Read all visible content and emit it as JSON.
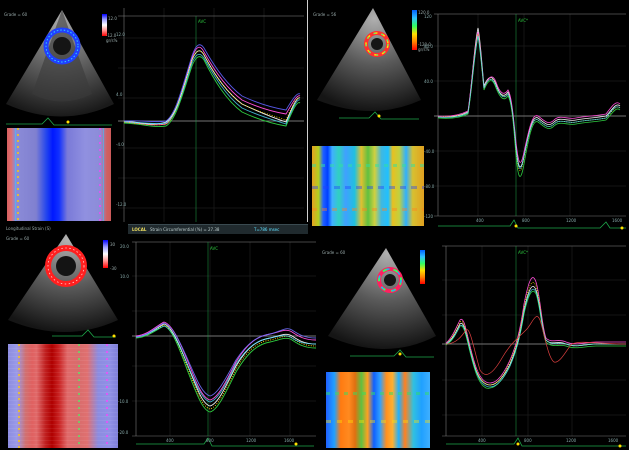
{
  "q1": {
    "label": "Grade = 60",
    "cbar_top": "12.0",
    "cbar_bottom": "-12.0",
    "cbar_unit": "gr/s%",
    "avc": "AVC",
    "y_ticks": [
      "12.0",
      "4.0",
      "-4.0",
      "-12.0"
    ],
    "accent": "#e8e8e8"
  },
  "q2": {
    "label": "Grade = 56",
    "cbar_top": "120.0",
    "cbar_bottom": "-120.0",
    "cbar_unit": "gr/s%",
    "avc": "AVC*",
    "y_ticks": [
      "120",
      "80.0",
      "40.0",
      "-40.0",
      "-80.0",
      "-120"
    ],
    "x_ticks": [
      "400",
      "800",
      "1200",
      "1600"
    ]
  },
  "q3": {
    "label": "Grade = 60",
    "header_label": "Longitudinal Strain (S)",
    "cbar_top": "30",
    "cbar_bottom": "-30",
    "avc": "AVC",
    "y_ticks": [
      "20.0",
      "10.0",
      "-10.0",
      "-20.0"
    ],
    "x_ticks": [
      "400",
      "800",
      "1200",
      "1600"
    ]
  },
  "q4": {
    "label": "Grade = 60",
    "avc": "AVC*",
    "x_ticks": [
      "400",
      "800",
      "1200",
      "1600"
    ]
  },
  "status_bar": {
    "local": "LOCAL",
    "metric": "Strain Circumferential (%) = 27.38",
    "time": "T=786 msec"
  },
  "colors": {
    "curve_white": "#f2f2f2",
    "curve_magenta": "#ff4fd8",
    "curve_yellow": "#ffe000",
    "curve_green": "#2ecc40",
    "curve_cyan": "#50e0ff",
    "curve_red": "#e04040",
    "grid": "#2a2a2a",
    "axis": "#7a7a7a",
    "ecg": "#1ea84a"
  }
}
